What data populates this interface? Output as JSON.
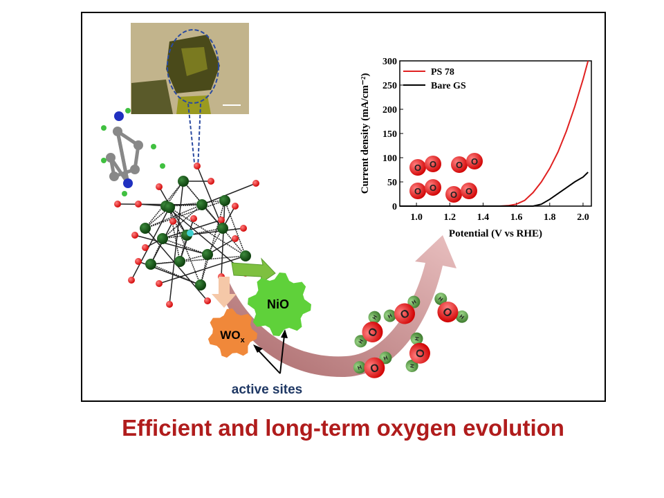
{
  "title": "Efficient and long-term oxygen evolution",
  "gears": {
    "nio": "NiO",
    "wox": {
      "base": "WO",
      "sub": "x"
    }
  },
  "annotation": "active sites",
  "atoms": {
    "oxygen": "O",
    "hydrogen": "H"
  },
  "chart_data": {
    "type": "line",
    "xlabel": "Potential (V vs RHE)",
    "ylabel": "Current density (mA/cm⁻²)",
    "x": [
      0.9,
      1.2,
      1.5,
      1.55,
      1.6,
      1.65,
      1.7,
      1.75,
      1.8,
      1.85,
      1.9,
      1.95,
      2.0,
      2.03
    ],
    "series": [
      {
        "name": "PS 78",
        "color": "#e02020",
        "values": [
          0,
          0,
          0,
          1,
          4,
          12,
          28,
          50,
          78,
          112,
          155,
          205,
          262,
          300
        ]
      },
      {
        "name": "Bare GS",
        "color": "#000000",
        "values": [
          0,
          0,
          0,
          0,
          0,
          0,
          0,
          4,
          14,
          26,
          38,
          50,
          60,
          70
        ]
      }
    ],
    "xlim": [
      0.9,
      2.05
    ],
    "ylim": [
      0,
      300
    ],
    "xticks": [
      {
        "value": 1,
        "label": "1.0"
      },
      1.2,
      1.4,
      1.6,
      1.8,
      {
        "value": 2,
        "label": "2.0"
      }
    ],
    "yticks": [
      0,
      50,
      100,
      150,
      200,
      250,
      300
    ],
    "legend": "top-left"
  }
}
